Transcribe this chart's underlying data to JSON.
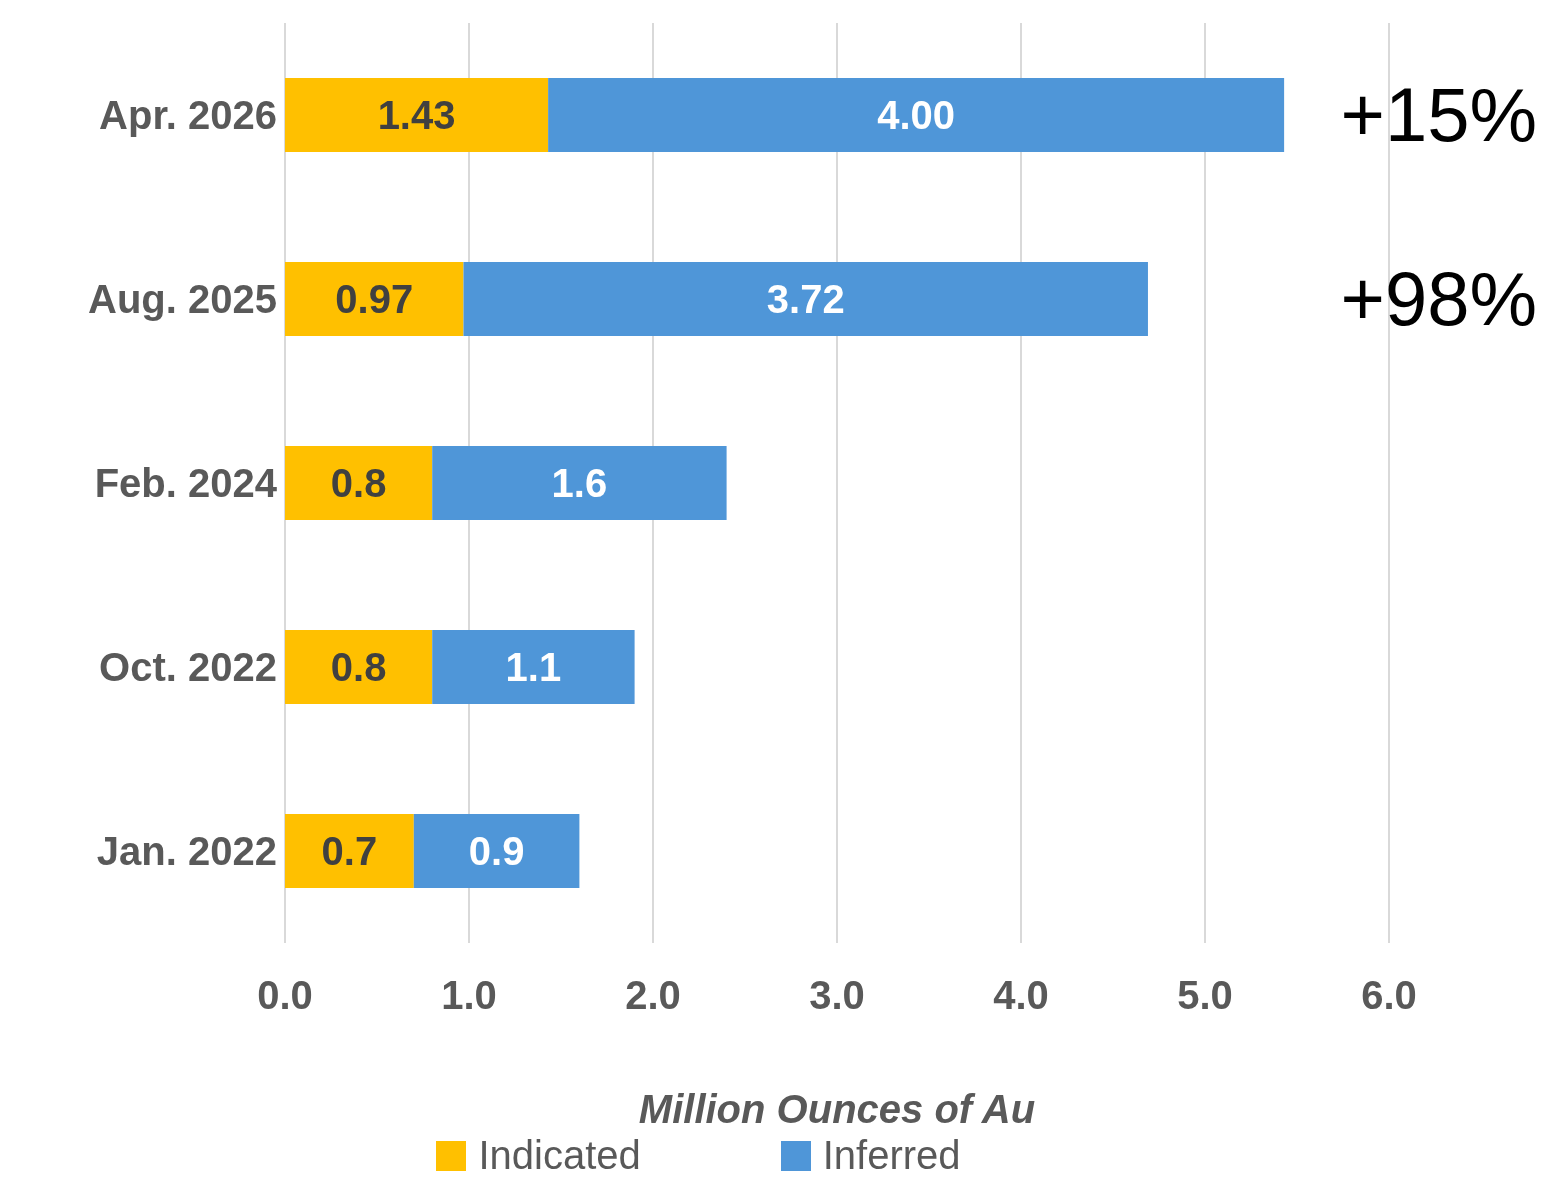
{
  "chart_data": {
    "type": "bar",
    "orientation": "horizontal",
    "stacked": true,
    "categories": [
      "Apr. 2026",
      "Aug. 2025",
      "Feb. 2024",
      "Oct. 2022",
      "Jan. 2022"
    ],
    "series": [
      {
        "name": "Indicated",
        "color": "#ffc000",
        "values": [
          1.43,
          0.97,
          0.8,
          0.8,
          0.7
        ]
      },
      {
        "name": "Inferred",
        "color": "#4f96d8",
        "values": [
          4.0,
          3.72,
          1.6,
          1.1,
          0.9
        ]
      }
    ],
    "value_labels": [
      [
        "1.43",
        "0.97",
        "0.8",
        "0.8",
        "0.7"
      ],
      [
        "4.00",
        "3.72",
        "1.6",
        "1.1",
        "0.9"
      ]
    ],
    "xlim": [
      0,
      6
    ],
    "xticks": [
      {
        "value": 0,
        "label": "0.0"
      },
      {
        "value": 1,
        "label": "1.0"
      },
      {
        "value": 2,
        "label": "2.0"
      },
      {
        "value": 3,
        "label": "3.0"
      },
      {
        "value": 4,
        "label": "4.0"
      },
      {
        "value": 5,
        "label": "5.0"
      },
      {
        "value": 6,
        "label": "6.0"
      }
    ],
    "xlabel": "Million Ounces of Au",
    "annotations": [
      "+15%",
      "+98%"
    ],
    "grid": "x",
    "legend": "bottom"
  }
}
